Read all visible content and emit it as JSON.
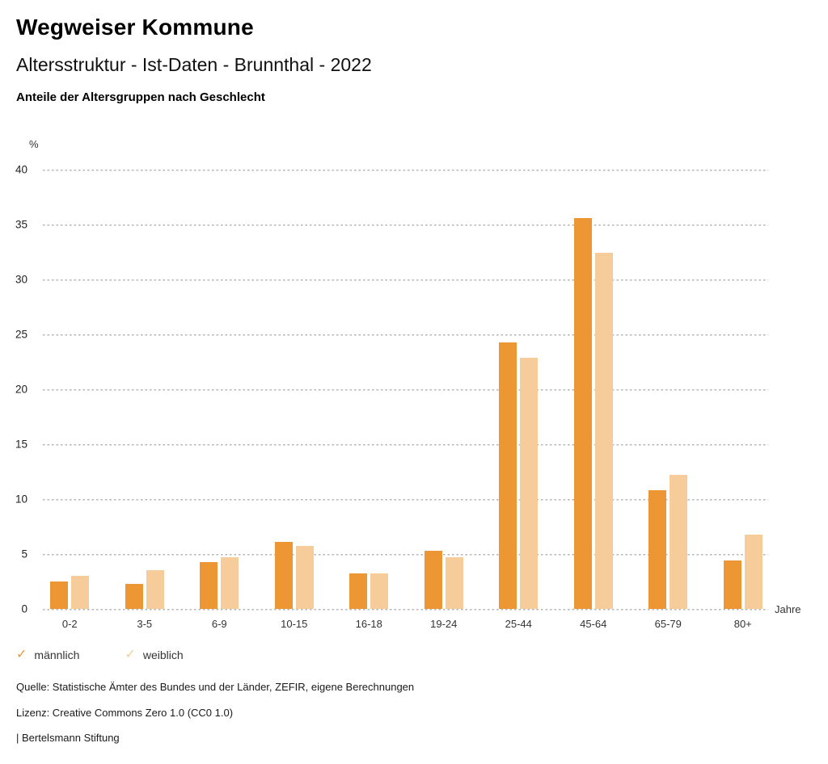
{
  "header": {
    "title": "Wegweiser Kommune",
    "subtitle": "Altersstruktur - Ist-Daten - Brunnthal - 2022",
    "heading": "Anteile der Altersgruppen nach Geschlecht"
  },
  "chart_data": {
    "type": "bar",
    "categories": [
      "0-2",
      "3-5",
      "6-9",
      "10-15",
      "16-18",
      "19-24",
      "25-44",
      "45-64",
      "65-79",
      "80+"
    ],
    "series": [
      {
        "name": "männlich",
        "color": "#EC9733",
        "values": [
          2.5,
          2.3,
          4.3,
          6.1,
          3.2,
          5.3,
          24.3,
          35.6,
          10.8,
          4.4
        ]
      },
      {
        "name": "weiblich",
        "color": "#F5CC9A",
        "values": [
          3.0,
          3.5,
          4.7,
          5.7,
          3.2,
          4.7,
          22.9,
          32.4,
          12.2,
          6.8
        ]
      }
    ],
    "title": "Anteile der Altersgruppen nach Geschlecht",
    "xlabel": "Jahre",
    "ylabel": "%",
    "ylim": [
      0,
      40
    ],
    "yticks": [
      0,
      5,
      10,
      15,
      20,
      25,
      30,
      35,
      40
    ],
    "grid": "horizontal-dotted",
    "legend_position": "bottom-left"
  },
  "legend": {
    "check_icon": "✓",
    "items": [
      {
        "label": "männlich",
        "color": "#EC9733"
      },
      {
        "label": "weiblich",
        "color": "#F5CC9A"
      }
    ]
  },
  "footer": {
    "source": "Quelle: Statistische Ämter des Bundes und der Länder, ZEFIR, eigene Berechnungen",
    "license": "Lizenz: Creative Commons Zero 1.0 (CC0 1.0)",
    "attribution": "| Bertelsmann Stiftung"
  }
}
